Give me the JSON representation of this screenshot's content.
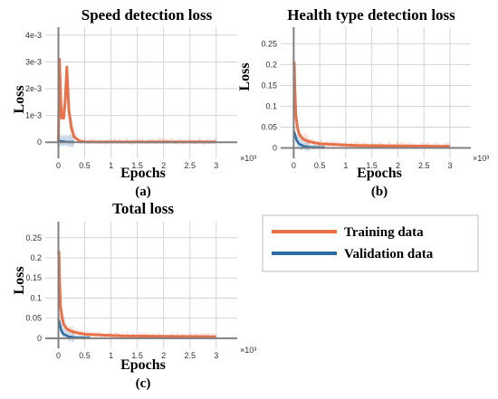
{
  "colors": {
    "training": "#E8714A",
    "validation": "#2E6DA4",
    "grid": "#D4D4D4",
    "zero_axis": "#808080"
  },
  "legend": {
    "training_label": "Training data",
    "validation_label": "Validation data"
  },
  "chart_data": [
    {
      "id": "a",
      "type": "line",
      "title": "Speed detection loss",
      "xlabel": "Epochs",
      "ylabel": "Loss",
      "sublabel": "(a)",
      "x_multiplier": "×10³",
      "xlim": [
        -0.25,
        3.4
      ],
      "ylim": [
        -0.0006,
        0.0043
      ],
      "xticks": [
        0,
        0.5,
        1,
        1.5,
        2,
        2.5,
        3
      ],
      "xtick_labels": [
        "0",
        "0.5",
        "1",
        "1.5",
        "2",
        "2.5",
        "3"
      ],
      "yticks": [
        0,
        0.001,
        0.002,
        0.003,
        0.004
      ],
      "ytick_labels": [
        "0",
        "1e-3",
        "2e-3",
        "3e-3",
        "4e-3"
      ],
      "series": [
        {
          "key": "training",
          "x": [
            0,
            0.02,
            0.04,
            0.06,
            0.08,
            0.1,
            0.13,
            0.16,
            0.2,
            0.25,
            0.3,
            0.4,
            0.5,
            0.7,
            1,
            1.5,
            2,
            2.5,
            3
          ],
          "y": [
            0,
            0.0031,
            0.0018,
            0.0009,
            0.0011,
            0.0009,
            0.0016,
            0.0028,
            0.0012,
            0.0005,
            0.0002,
            5e-05,
            2e-05,
            1e-05,
            1e-05,
            1e-05,
            1e-05,
            1e-05,
            1e-05
          ]
        },
        {
          "key": "validation",
          "x": [
            0,
            0.05,
            0.1,
            0.15,
            0.2,
            0.25,
            0.3
          ],
          "y": [
            5e-05,
            4e-05,
            3e-05,
            2e-05,
            1e-05,
            1e-05,
            1e-05
          ]
        }
      ]
    },
    {
      "id": "b",
      "type": "line",
      "title": "Health type detection loss",
      "xlabel": "Epochs",
      "ylabel": "Loss",
      "sublabel": "(b)",
      "x_multiplier": "×10³",
      "xlim": [
        -0.25,
        3.4
      ],
      "ylim": [
        -0.025,
        0.29
      ],
      "xticks": [
        0,
        0.5,
        1,
        1.5,
        2,
        2.5,
        3
      ],
      "xtick_labels": [
        "0",
        "0.5",
        "1",
        "1.5",
        "2",
        "2.5",
        "3"
      ],
      "yticks": [
        0,
        0.05,
        0.1,
        0.15,
        0.2,
        0.25
      ],
      "ytick_labels": [
        "0",
        "0.05",
        "0.1",
        "0.15",
        "0.2",
        "0.25"
      ],
      "series": [
        {
          "key": "training",
          "x": [
            0,
            0.01,
            0.02,
            0.04,
            0.07,
            0.1,
            0.15,
            0.2,
            0.3,
            0.5,
            0.8,
            1.2,
            2,
            3
          ],
          "y": [
            0.2,
            0.205,
            0.15,
            0.08,
            0.05,
            0.035,
            0.025,
            0.02,
            0.015,
            0.01,
            0.008,
            0.006,
            0.005,
            0.004
          ]
        },
        {
          "key": "validation",
          "x": [
            0,
            0.02,
            0.05,
            0.1,
            0.2,
            0.3,
            0.5,
            0.6
          ],
          "y": [
            0.04,
            0.035,
            0.02,
            0.01,
            0.004,
            0.002,
            0.001,
            0.001
          ]
        }
      ]
    },
    {
      "id": "c",
      "type": "line",
      "title": "Total loss",
      "xlabel": "Epochs",
      "ylabel": "Loss",
      "sublabel": "(c)",
      "x_multiplier": "×10³",
      "xlim": [
        -0.25,
        3.4
      ],
      "ylim": [
        -0.025,
        0.29
      ],
      "xticks": [
        0,
        0.5,
        1,
        1.5,
        2,
        2.5,
        3
      ],
      "xtick_labels": [
        "0",
        "0.5",
        "1",
        "1.5",
        "2",
        "2.5",
        "3"
      ],
      "yticks": [
        0,
        0.05,
        0.1,
        0.15,
        0.2,
        0.25
      ],
      "ytick_labels": [
        "0",
        "0.05",
        "0.1",
        "0.15",
        "0.2",
        "0.25"
      ],
      "series": [
        {
          "key": "training",
          "x": [
            0,
            0.01,
            0.02,
            0.04,
            0.07,
            0.1,
            0.15,
            0.2,
            0.3,
            0.5,
            0.8,
            1.2,
            2,
            3
          ],
          "y": [
            0.21,
            0.215,
            0.15,
            0.08,
            0.05,
            0.035,
            0.025,
            0.02,
            0.015,
            0.01,
            0.008,
            0.006,
            0.005,
            0.004
          ]
        },
        {
          "key": "validation",
          "x": [
            0,
            0.02,
            0.05,
            0.1,
            0.2,
            0.3,
            0.5,
            0.6
          ],
          "y": [
            0.045,
            0.04,
            0.02,
            0.01,
            0.004,
            0.002,
            0.001,
            0.001
          ]
        }
      ]
    }
  ]
}
